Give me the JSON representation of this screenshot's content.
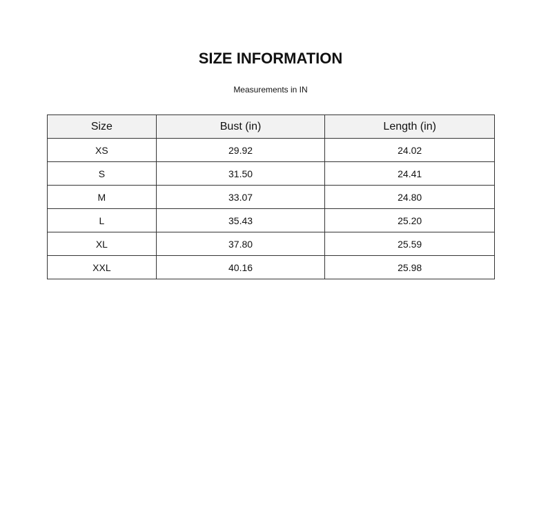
{
  "title": "SIZE INFORMATION",
  "subtitle": "Measurements in IN",
  "table": {
    "headers": [
      "Size",
      "Bust (in)",
      "Length (in)"
    ],
    "rows": [
      [
        "XS",
        "29.92",
        "24.02"
      ],
      [
        "S",
        "31.50",
        "24.41"
      ],
      [
        "M",
        "33.07",
        "24.80"
      ],
      [
        "L",
        "35.43",
        "25.20"
      ],
      [
        "XL",
        "37.80",
        "25.59"
      ],
      [
        "XXL",
        "40.16",
        "25.98"
      ]
    ]
  }
}
